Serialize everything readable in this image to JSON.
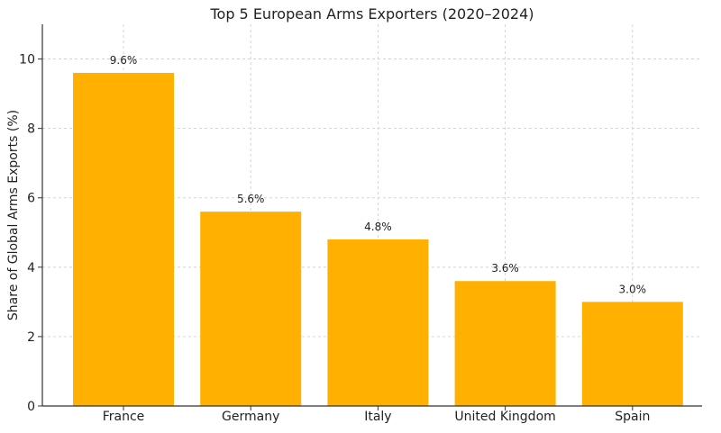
{
  "chart_data": {
    "type": "bar",
    "title": "Top 5 European Arms Exporters (2020–2024)",
    "xlabel": "",
    "ylabel": "Share of Global Arms Exports (%)",
    "categories": [
      "France",
      "Germany",
      "Italy",
      "United Kingdom",
      "Spain"
    ],
    "values": [
      9.6,
      5.6,
      4.8,
      3.6,
      3.0
    ],
    "data_labels": [
      "9.6%",
      "5.6%",
      "4.8%",
      "3.6%",
      "3.0%"
    ],
    "ylim": [
      0,
      11
    ],
    "yticks": [
      0,
      2,
      4,
      6,
      8,
      10
    ],
    "grid": true,
    "bar_color": "#FFB000"
  }
}
